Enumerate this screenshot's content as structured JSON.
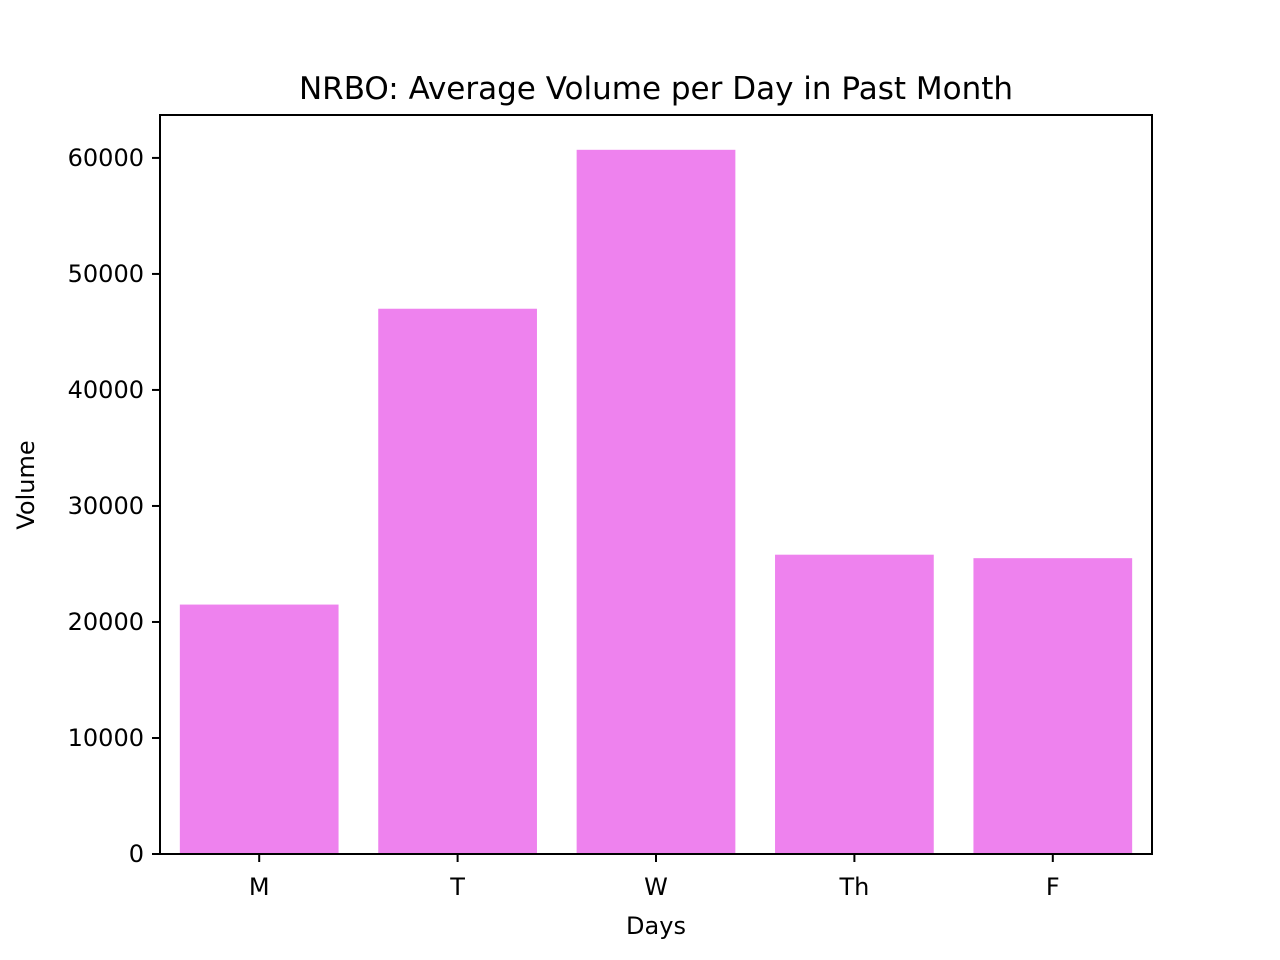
{
  "chart_data": {
    "type": "bar",
    "title": "NRBO: Average Volume per Day in Past Month",
    "xlabel": "Days",
    "ylabel": "Volume",
    "categories": [
      "M",
      "T",
      "W",
      "Th",
      "F"
    ],
    "values": [
      21500,
      47000,
      60700,
      25800,
      25500
    ],
    "ylim": [
      0,
      63700
    ],
    "yticks": [
      0,
      10000,
      20000,
      30000,
      40000,
      50000,
      60000
    ],
    "ytick_labels": [
      "0",
      "10000",
      "20000",
      "30000",
      "40000",
      "50000",
      "60000"
    ],
    "bar_color": "#ee82ee",
    "grid": false,
    "legend": "none"
  }
}
